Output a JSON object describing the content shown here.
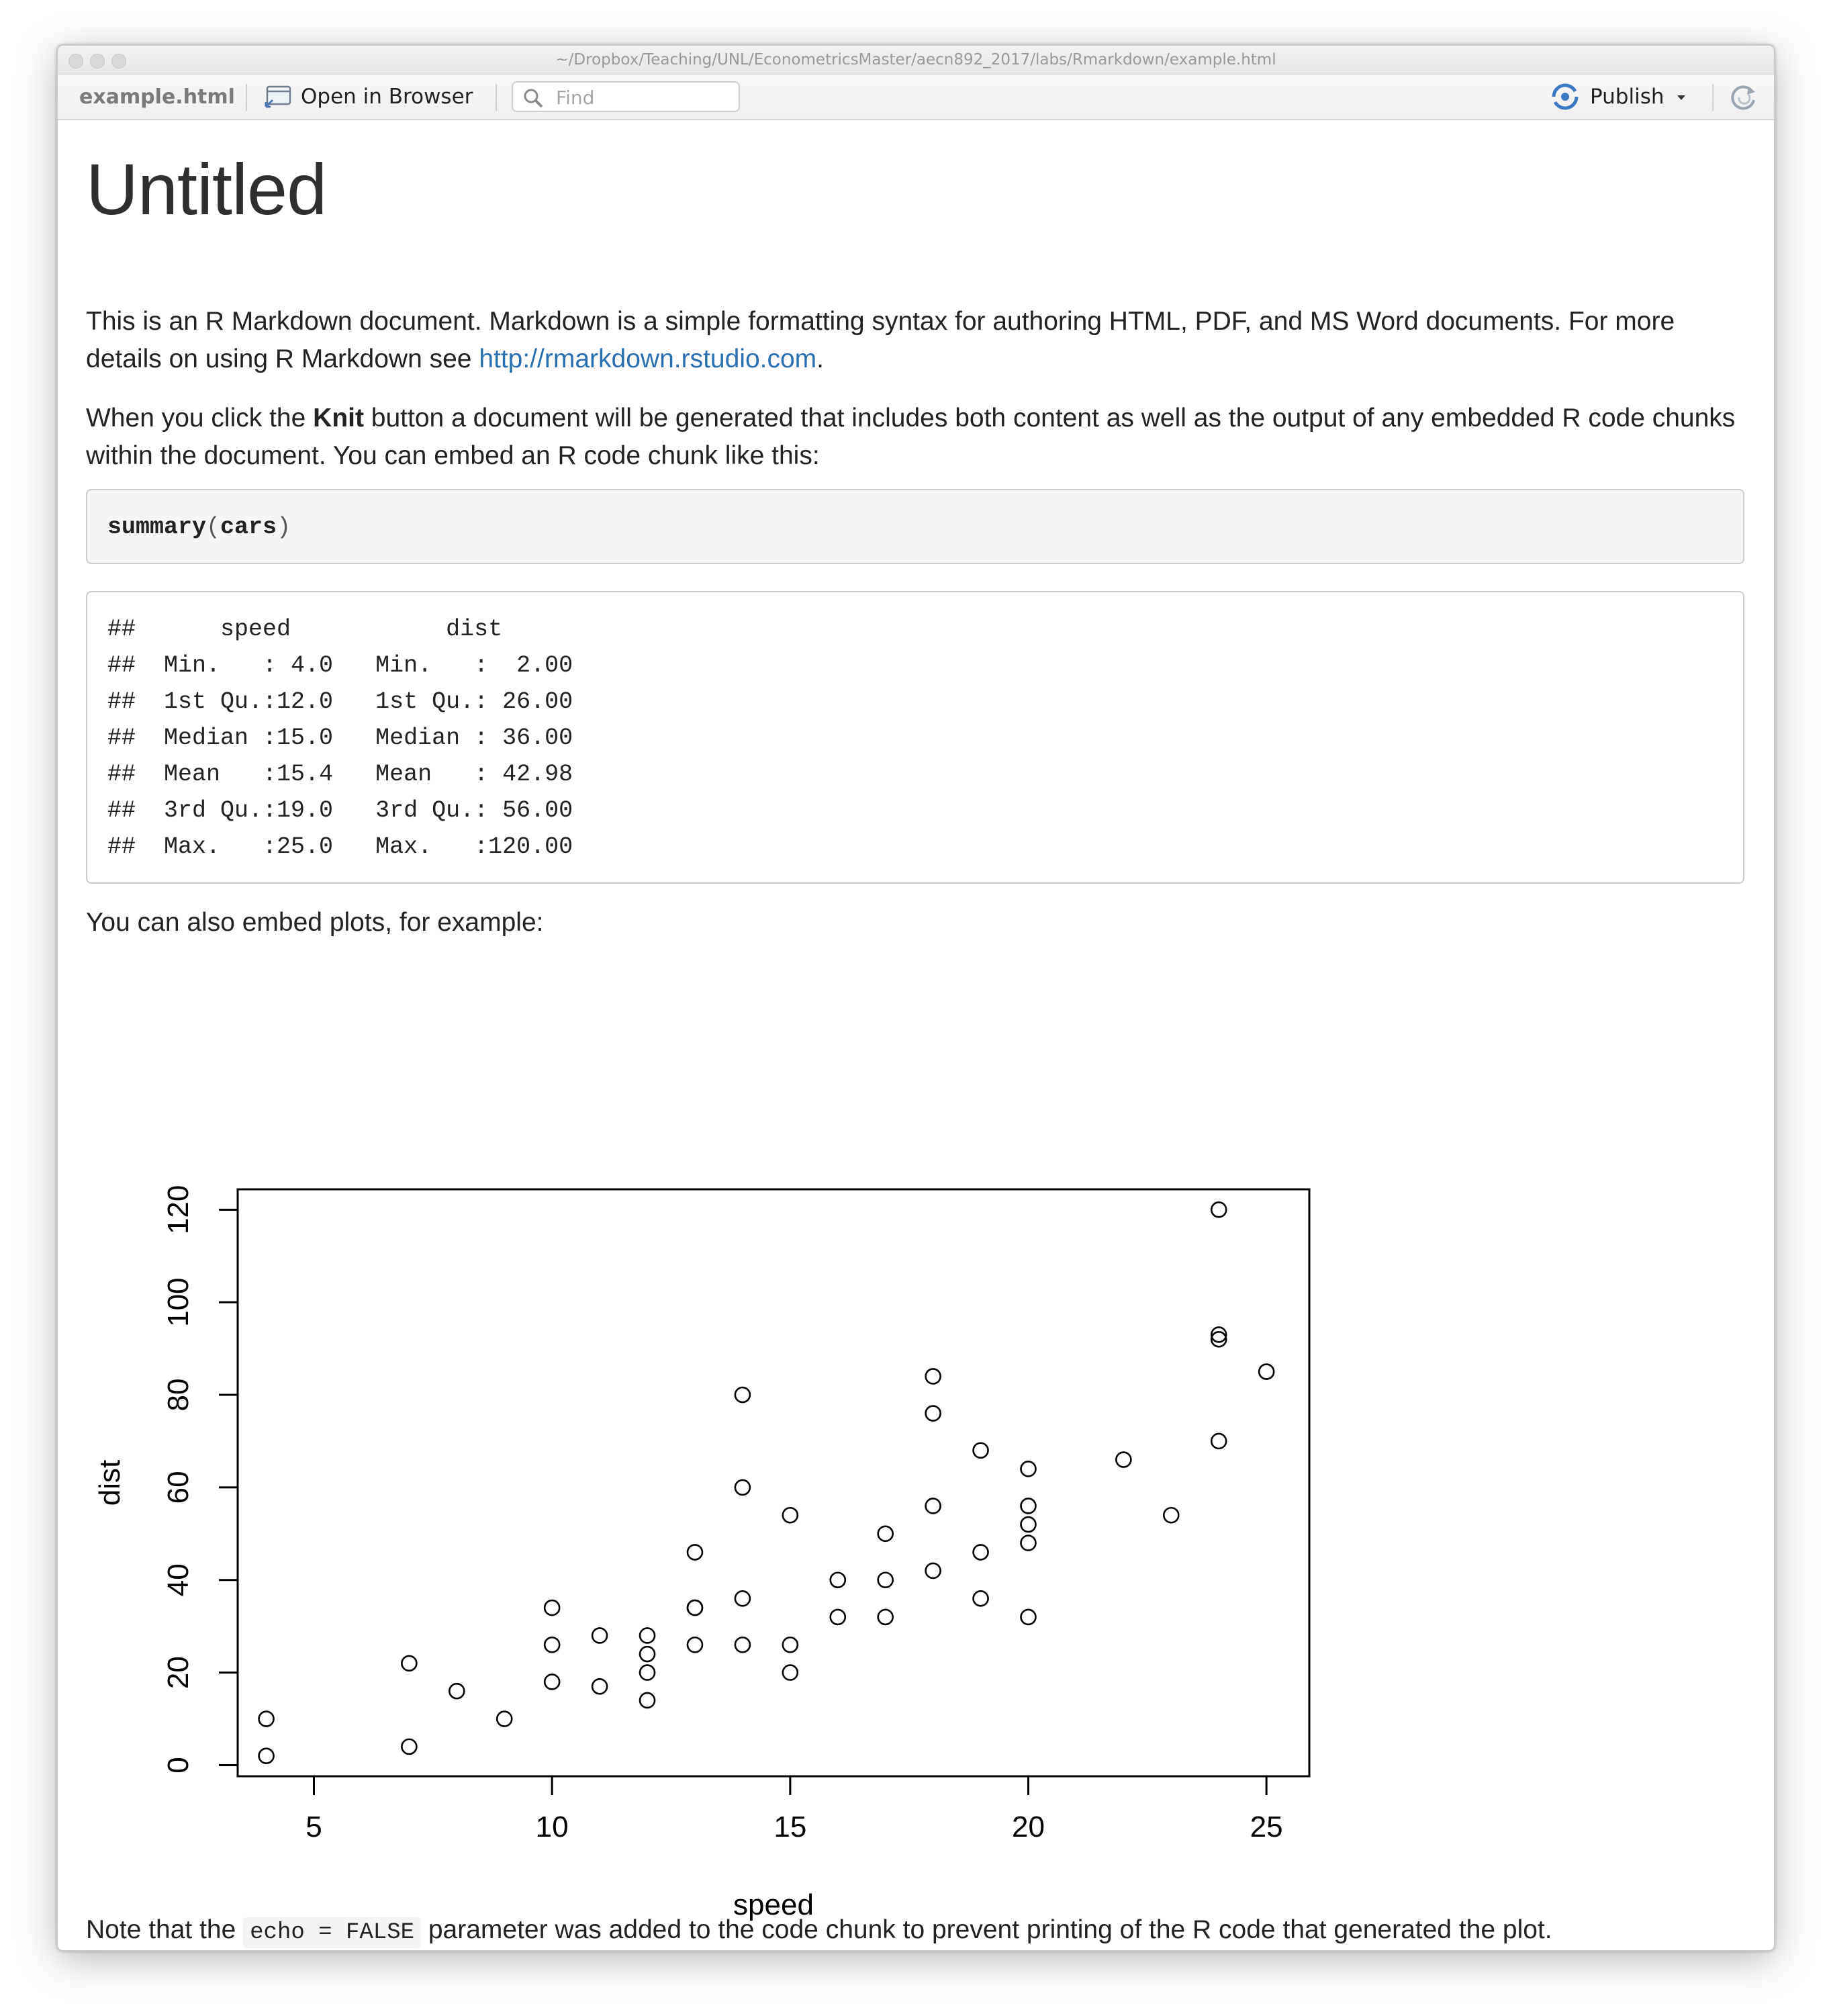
{
  "window": {
    "path": "~/Dropbox/Teaching/UNL/EconometricsMaster/aecn892_2017/labs/Rmarkdown/example.html"
  },
  "toolbar": {
    "file_name": "example.html",
    "open_in_browser": "Open in Browser",
    "find_placeholder": "Find",
    "publish": "Publish"
  },
  "doc": {
    "title": "Untitled",
    "p1": "This is an R Markdown document. Markdown is a simple formatting syntax for authoring HTML, PDF, and MS Word documents. For more details on using R Markdown see ",
    "p1_link": "http://rmarkdown.rstudio.com",
    "p1_end": ".",
    "p2_a": "When you click the ",
    "p2_bold": "Knit",
    "p2_b": " button a document will be generated that includes both content as well as the output of any embedded R code chunks within the document. You can embed an R code chunk like this:",
    "code_fn": "summary",
    "code_open": "(",
    "code_arg": "cars",
    "code_close": ")",
    "output_lines": [
      "##      speed           dist       ",
      "##  Min.   : 4.0   Min.   :  2.00  ",
      "##  1st Qu.:12.0   1st Qu.: 26.00  ",
      "##  Median :15.0   Median : 36.00  ",
      "##  Mean   :15.4   Mean   : 42.98  ",
      "##  3rd Qu.:19.0   3rd Qu.: 56.00  ",
      "##  Max.   :25.0   Max.   :120.00  "
    ],
    "p3": "You can also embed plots, for example:",
    "p4_a": "Note that the ",
    "p4_code": "echo = FALSE",
    "p4_b": " parameter was added to the code chunk to prevent printing of the R code that generated the plot."
  },
  "chart_data": {
    "type": "scatter",
    "title": "",
    "xlabel": "speed",
    "ylabel": "dist",
    "xlim": [
      3.4,
      25.9
    ],
    "ylim": [
      -2.4,
      124.4
    ],
    "xticks": [
      5,
      10,
      15,
      20,
      25
    ],
    "yticks": [
      0,
      20,
      40,
      60,
      80,
      100,
      120
    ],
    "grid": false,
    "x": [
      4,
      4,
      7,
      7,
      8,
      9,
      10,
      10,
      10,
      11,
      11,
      12,
      12,
      12,
      12,
      13,
      13,
      13,
      13,
      14,
      14,
      14,
      14,
      15,
      15,
      15,
      16,
      16,
      17,
      17,
      17,
      18,
      18,
      18,
      18,
      19,
      19,
      19,
      20,
      20,
      20,
      20,
      20,
      22,
      23,
      24,
      24,
      24,
      24,
      25
    ],
    "y": [
      2,
      10,
      4,
      22,
      16,
      10,
      18,
      26,
      34,
      17,
      28,
      14,
      20,
      24,
      28,
      26,
      34,
      34,
      46,
      26,
      36,
      60,
      80,
      20,
      26,
      54,
      32,
      40,
      32,
      40,
      50,
      42,
      56,
      76,
      84,
      36,
      46,
      68,
      32,
      48,
      52,
      56,
      64,
      66,
      54,
      70,
      92,
      93,
      120,
      85
    ]
  }
}
